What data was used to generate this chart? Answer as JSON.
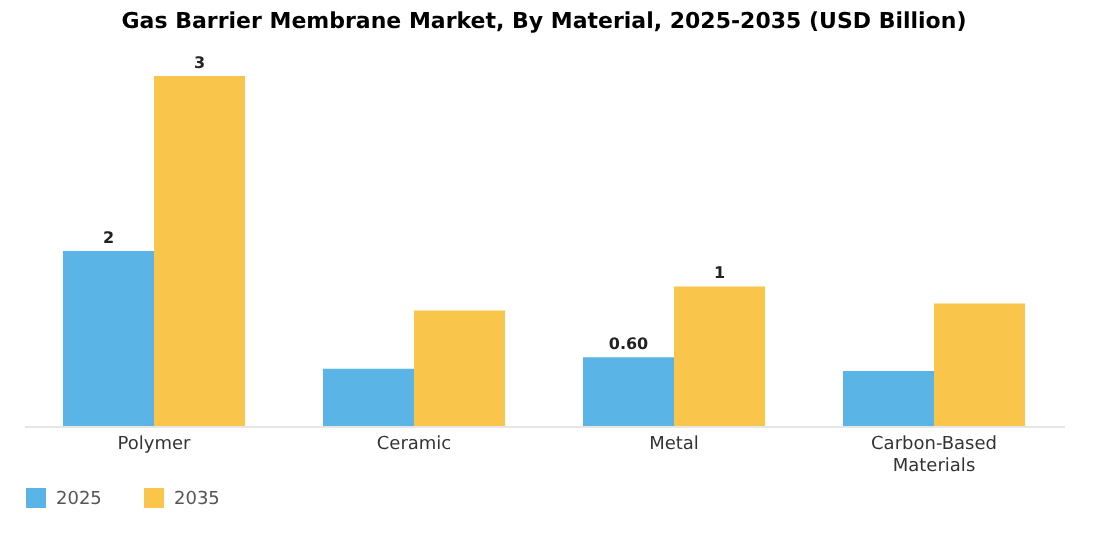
{
  "chart_data": {
    "type": "bar",
    "title": "Gas Barrier Membrane Market, By Material, 2025-2035 (USD Billion)",
    "categories": [
      "Polymer",
      "Ceramic",
      "Metal",
      "Carbon-Based Materials"
    ],
    "series": [
      {
        "name": "2025",
        "color": "#5ab4e5",
        "values": [
          1.53,
          0.5,
          0.6,
          0.48
        ],
        "value_labels": [
          "2",
          null,
          "0.60",
          null
        ]
      },
      {
        "name": "2035",
        "color": "#f9c54b",
        "values": [
          3.06,
          1.01,
          1.22,
          1.07
        ],
        "value_labels": [
          "3",
          null,
          "1",
          null
        ]
      }
    ],
    "legend": "bottom",
    "grid": false
  }
}
